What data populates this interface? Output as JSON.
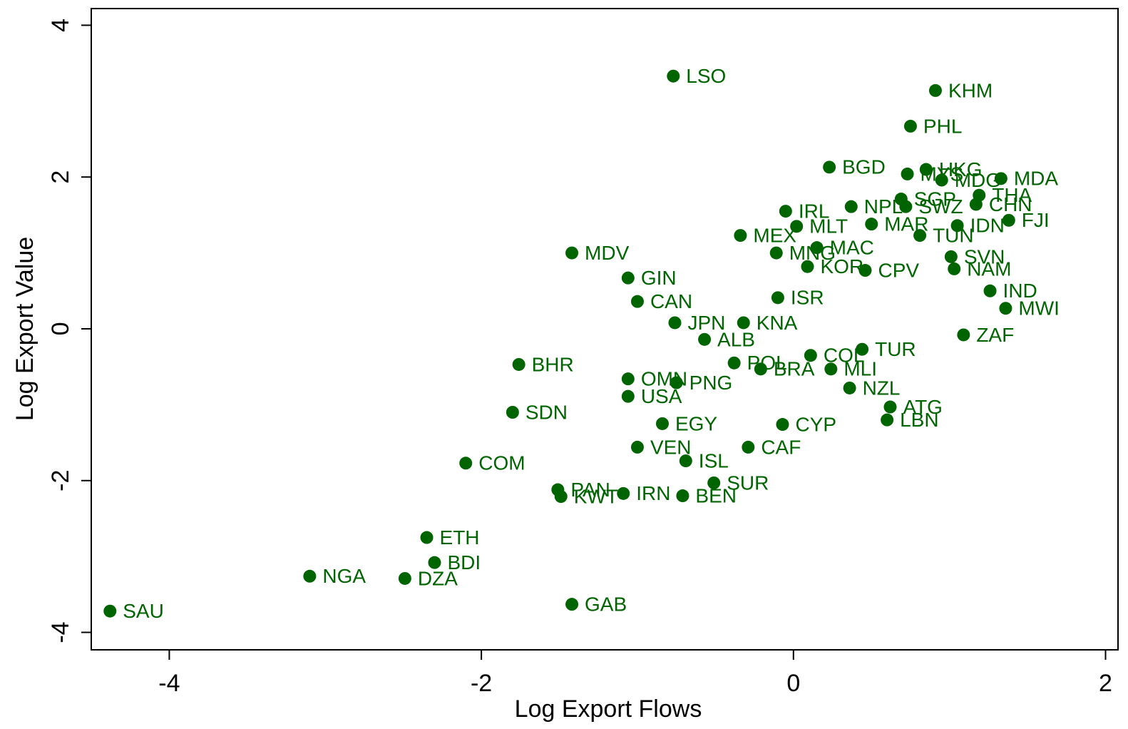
{
  "chart_data": {
    "type": "scatter",
    "x_label": "Log Export Flows",
    "y_label": "Log Export Value",
    "color": "#006400",
    "xlim": [
      -4.5,
      2.08
    ],
    "ylim": [
      -4.23,
      4.22
    ],
    "xticks": [
      -4,
      -2,
      0,
      2
    ],
    "yticks": [
      -4,
      -2,
      0,
      2,
      4
    ],
    "points": [
      {
        "label": "LSO",
        "x": -0.77,
        "y": 3.33
      },
      {
        "label": "KHM",
        "x": 0.91,
        "y": 3.14
      },
      {
        "label": "PHL",
        "x": 0.75,
        "y": 2.67
      },
      {
        "label": "BGD",
        "x": 0.23,
        "y": 2.13
      },
      {
        "label": "HKG",
        "x": 0.85,
        "y": 2.1
      },
      {
        "label": "MYS",
        "x": 0.73,
        "y": 2.04
      },
      {
        "label": "MDG",
        "x": 0.95,
        "y": 1.96
      },
      {
        "label": "MDA",
        "x": 1.33,
        "y": 1.98
      },
      {
        "label": "THA",
        "x": 1.19,
        "y": 1.76
      },
      {
        "label": "SGP",
        "x": 0.69,
        "y": 1.71
      },
      {
        "label": "CHN",
        "x": 1.17,
        "y": 1.64
      },
      {
        "label": "SWZ",
        "x": 0.72,
        "y": 1.61
      },
      {
        "label": "NPL",
        "x": 0.37,
        "y": 1.61
      },
      {
        "label": "IRL",
        "x": -0.05,
        "y": 1.55
      },
      {
        "label": "FJI",
        "x": 1.38,
        "y": 1.43
      },
      {
        "label": "IDN",
        "x": 1.05,
        "y": 1.36
      },
      {
        "label": "MLT",
        "x": 0.02,
        "y": 1.35
      },
      {
        "label": "MAR",
        "x": 0.5,
        "y": 1.38
      },
      {
        "label": "MEX",
        "x": -0.34,
        "y": 1.23
      },
      {
        "label": "TUN",
        "x": 0.81,
        "y": 1.23
      },
      {
        "label": "MDV",
        "x": -1.42,
        "y": 1.0
      },
      {
        "label": "MNG",
        "x": -0.11,
        "y": 1.0
      },
      {
        "label": "MAC",
        "x": 0.15,
        "y": 1.07
      },
      {
        "label": "SVN",
        "x": 1.01,
        "y": 0.95
      },
      {
        "label": "KOR",
        "x": 0.09,
        "y": 0.82
      },
      {
        "label": "NAM",
        "x": 1.03,
        "y": 0.79
      },
      {
        "label": "CPV",
        "x": 0.46,
        "y": 0.77
      },
      {
        "label": "GIN",
        "x": -1.06,
        "y": 0.67
      },
      {
        "label": "IND",
        "x": 1.26,
        "y": 0.5
      },
      {
        "label": "CAN",
        "x": -1.0,
        "y": 0.36
      },
      {
        "label": "ISR",
        "x": -0.1,
        "y": 0.41
      },
      {
        "label": "MWI",
        "x": 1.36,
        "y": 0.27
      },
      {
        "label": "KNA",
        "x": -0.32,
        "y": 0.08
      },
      {
        "label": "JPN",
        "x": -0.76,
        "y": 0.08
      },
      {
        "label": "ZAF",
        "x": 1.09,
        "y": -0.08
      },
      {
        "label": "ALB",
        "x": -0.57,
        "y": -0.14
      },
      {
        "label": "COL",
        "x": 0.11,
        "y": -0.35
      },
      {
        "label": "TUR",
        "x": 0.44,
        "y": -0.27
      },
      {
        "label": "BHR",
        "x": -1.76,
        "y": -0.47
      },
      {
        "label": "POL",
        "x": -0.38,
        "y": -0.45
      },
      {
        "label": "BRA",
        "x": -0.21,
        "y": -0.53
      },
      {
        "label": "MLI",
        "x": 0.24,
        "y": -0.53
      },
      {
        "label": "OMN",
        "x": -1.06,
        "y": -0.66
      },
      {
        "label": "PNG",
        "x": -0.75,
        "y": -0.71
      },
      {
        "label": "NZL",
        "x": 0.36,
        "y": -0.78
      },
      {
        "label": "USA",
        "x": -1.06,
        "y": -0.89
      },
      {
        "label": "ATG",
        "x": 0.62,
        "y": -1.03
      },
      {
        "label": "SDN",
        "x": -1.8,
        "y": -1.1
      },
      {
        "label": "LBN",
        "x": 0.6,
        "y": -1.2
      },
      {
        "label": "CYP",
        "x": -0.07,
        "y": -1.26
      },
      {
        "label": "EGY",
        "x": -0.84,
        "y": -1.25
      },
      {
        "label": "CAF",
        "x": -0.29,
        "y": -1.56
      },
      {
        "label": "VEN",
        "x": -1.0,
        "y": -1.56
      },
      {
        "label": "ISL",
        "x": -0.69,
        "y": -1.74
      },
      {
        "label": "COM",
        "x": -2.1,
        "y": -1.77
      },
      {
        "label": "SUR",
        "x": -0.51,
        "y": -2.03
      },
      {
        "label": "PAN",
        "x": -1.51,
        "y": -2.12
      },
      {
        "label": "KWT",
        "x": -1.49,
        "y": -2.21
      },
      {
        "label": "IRN",
        "x": -1.09,
        "y": -2.17
      },
      {
        "label": "BEN",
        "x": -0.71,
        "y": -2.2
      },
      {
        "label": "ETH",
        "x": -2.35,
        "y": -2.75
      },
      {
        "label": "BDI",
        "x": -2.3,
        "y": -3.08
      },
      {
        "label": "NGA",
        "x": -3.1,
        "y": -3.26
      },
      {
        "label": "DZA",
        "x": -2.49,
        "y": -3.29
      },
      {
        "label": "GAB",
        "x": -1.42,
        "y": -3.63
      },
      {
        "label": "SAU",
        "x": -4.38,
        "y": -3.72
      }
    ]
  }
}
